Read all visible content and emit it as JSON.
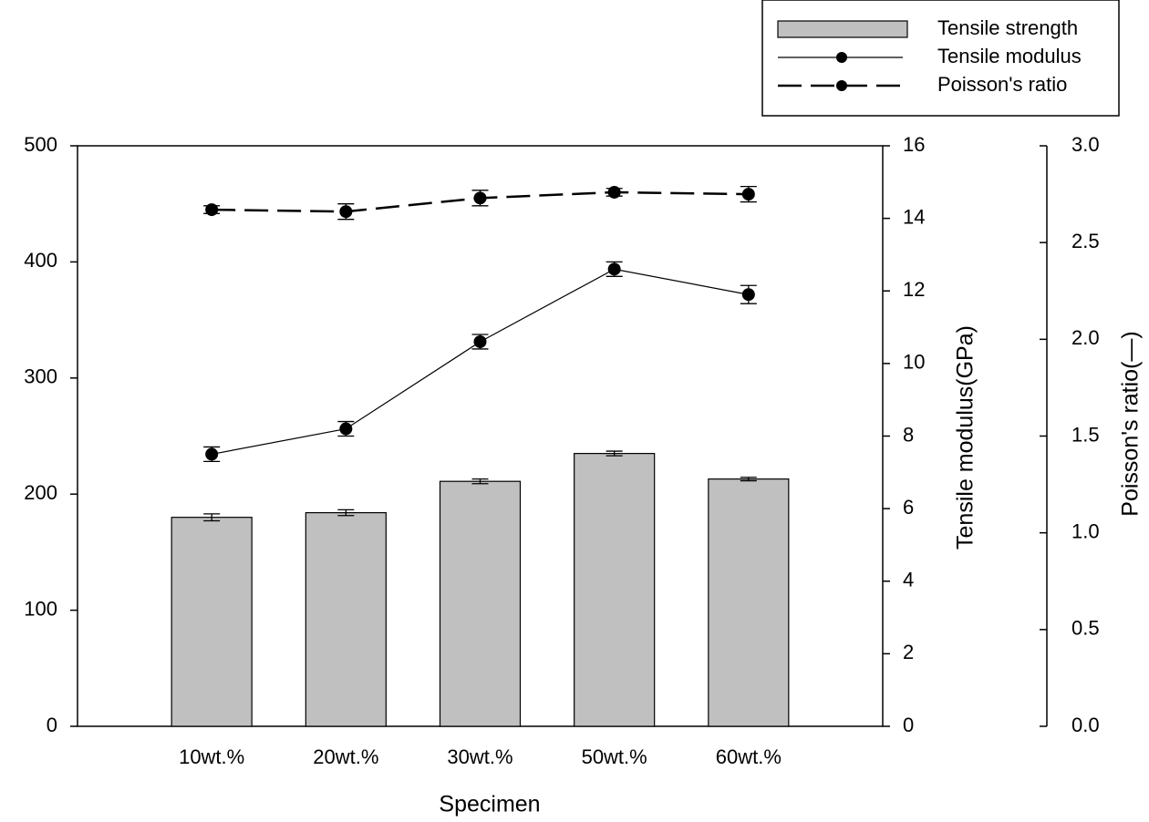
{
  "chart_data": {
    "type": "bar-line",
    "x_label": "Specimen",
    "y2_label": "Tensile modulus(GPa)",
    "y3_label": "Poisson's ratio(—)",
    "categories": [
      "10wt.%",
      "20wt.%",
      "30wt.%",
      "50wt.%",
      "60wt.%"
    ],
    "ylim": [
      0,
      500
    ],
    "yticks": [
      0,
      100,
      200,
      300,
      400,
      500
    ],
    "y2lim": [
      0,
      16
    ],
    "y2ticks": [
      0,
      2,
      4,
      6,
      8,
      10,
      12,
      14,
      16
    ],
    "y3lim": [
      0,
      3
    ],
    "y3ticks": [
      {
        "value": 0,
        "label": "0.0"
      },
      {
        "value": 0.5,
        "label": "0.5"
      },
      {
        "value": 1,
        "label": "1.0"
      },
      {
        "value": 1.5,
        "label": "1.5"
      },
      {
        "value": 2,
        "label": "2.0"
      },
      {
        "value": 2.5,
        "label": "2.5"
      },
      {
        "value": 3,
        "label": "3.0"
      }
    ],
    "legend_position": "top-right",
    "series": [
      {
        "name": "Tensile strength",
        "kind": "bar",
        "axis": "y",
        "color": "#c0c0c0",
        "values": [
          180,
          184,
          211,
          235,
          213
        ],
        "errors": [
          3,
          2.5,
          2,
          2,
          1.5
        ]
      },
      {
        "name": "Tensile modulus",
        "kind": "line",
        "axis": "y2",
        "color": "#000000",
        "dash": "solid",
        "values": [
          7.5,
          8.2,
          10.6,
          12.6,
          11.9
        ],
        "errors": [
          0.2,
          0.2,
          0.2,
          0.2,
          0.25
        ]
      },
      {
        "name": "Poisson's ratio",
        "kind": "line",
        "axis": "y3",
        "color": "#000000",
        "dash": "dashed",
        "values": [
          2.67,
          2.66,
          2.73,
          2.76,
          2.75
        ],
        "errors": [
          0.02,
          0.04,
          0.04,
          0.02,
          0.04
        ]
      }
    ]
  }
}
